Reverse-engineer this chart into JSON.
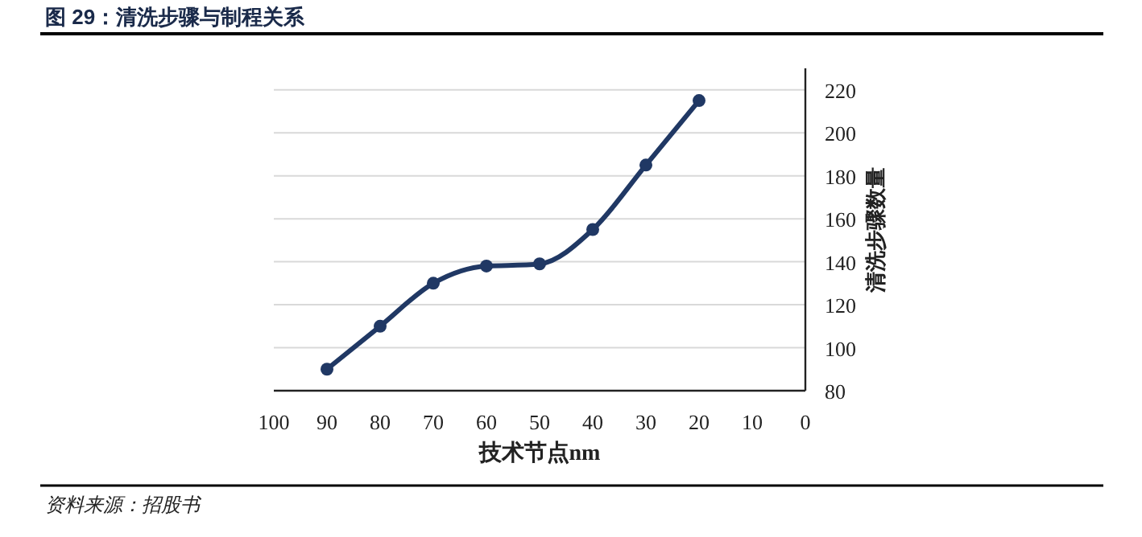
{
  "chart_data": {
    "type": "line",
    "title": "图 29：清洗步骤与制程关系",
    "xlabel": "技术节点nm",
    "ylabel": "清洗步骤数量",
    "annotations": [
      "资料来源：招股书"
    ],
    "x": [
      90,
      80,
      70,
      60,
      50,
      40,
      30,
      20
    ],
    "series": [
      {
        "color": "#203864",
        "values": [
          90,
          110,
          130,
          138,
          139,
          155,
          185,
          215
        ]
      }
    ],
    "xlim": [
      100,
      0
    ],
    "xticks": [
      100,
      90,
      80,
      70,
      60,
      50,
      40,
      30,
      20,
      10,
      0
    ],
    "ylim": [
      80,
      230
    ],
    "yticks": [
      80,
      100,
      120,
      140,
      160,
      180,
      200,
      220
    ],
    "grid": "y",
    "marker": "circle",
    "line_style": "solid"
  }
}
